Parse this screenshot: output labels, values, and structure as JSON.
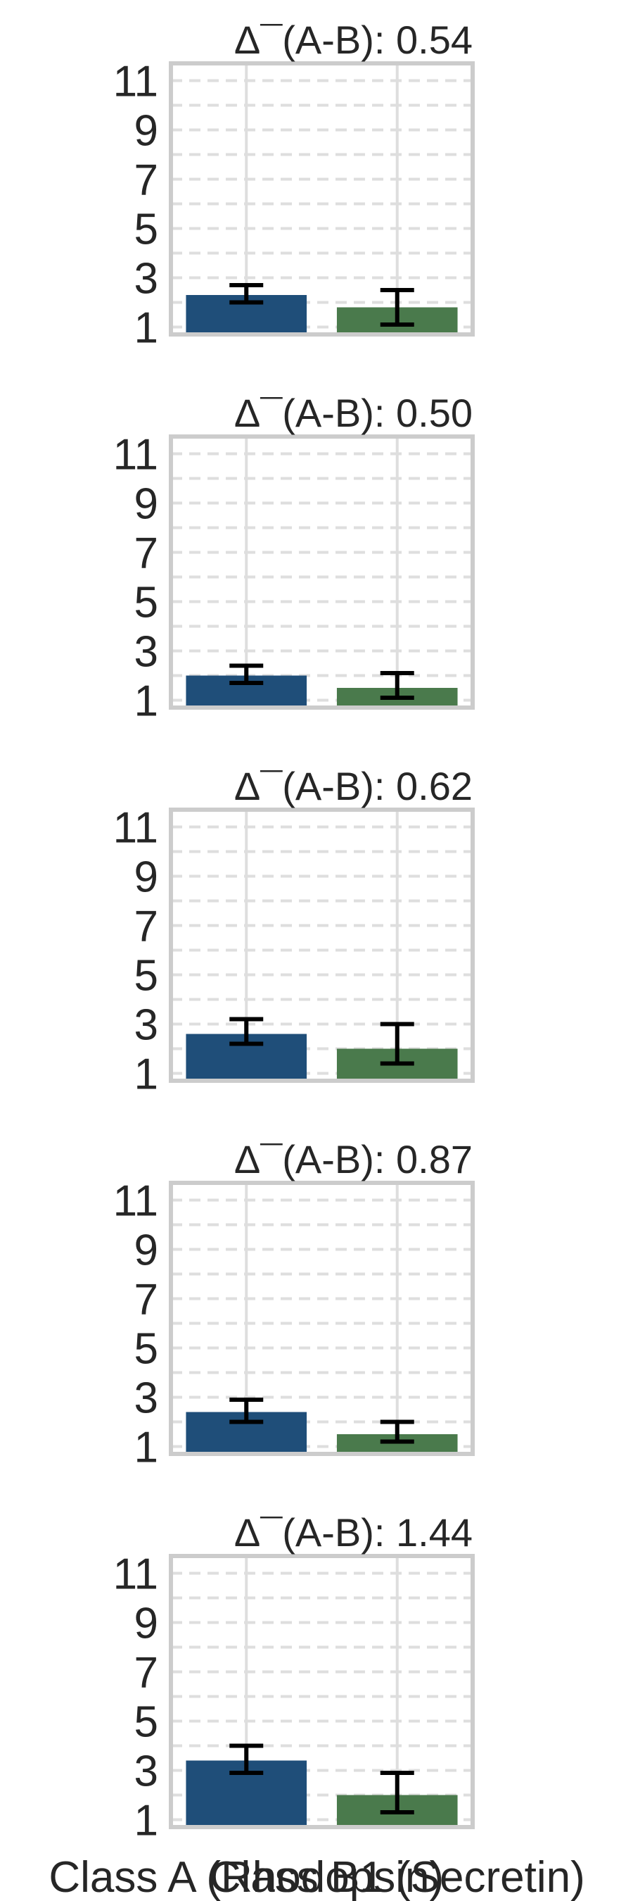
{
  "chart_data": {
    "type": "bar",
    "categories": [
      "Class A (Rhodopsin)",
      "Class B1 (Secretin)"
    ],
    "ylim": [
      0.7,
      11.7
    ],
    "yticks": [
      1,
      3,
      5,
      7,
      9,
      11
    ],
    "grid": true,
    "colors": [
      "#1f4e79",
      "#4a7a4c"
    ],
    "panels": [
      {
        "title": "Δ¯(A-B): 0.54",
        "values": [
          2.3,
          1.8
        ],
        "err_low": [
          2.0,
          1.1
        ],
        "err_high": [
          2.7,
          2.5
        ]
      },
      {
        "title": "Δ¯(A-B): 0.50",
        "values": [
          2.0,
          1.5
        ],
        "err_low": [
          1.7,
          1.1
        ],
        "err_high": [
          2.4,
          2.1
        ]
      },
      {
        "title": "Δ¯(A-B): 0.62",
        "values": [
          2.6,
          2.0
        ],
        "err_low": [
          2.2,
          1.4
        ],
        "err_high": [
          3.2,
          3.0
        ]
      },
      {
        "title": "Δ¯(A-B): 0.87",
        "values": [
          2.4,
          1.5
        ],
        "err_low": [
          2.0,
          1.2
        ],
        "err_high": [
          2.9,
          2.0
        ]
      },
      {
        "title": "Δ¯(A-B): 1.44",
        "values": [
          3.4,
          2.0
        ],
        "err_low": [
          2.9,
          1.3
        ],
        "err_high": [
          4.0,
          2.9
        ]
      }
    ]
  }
}
